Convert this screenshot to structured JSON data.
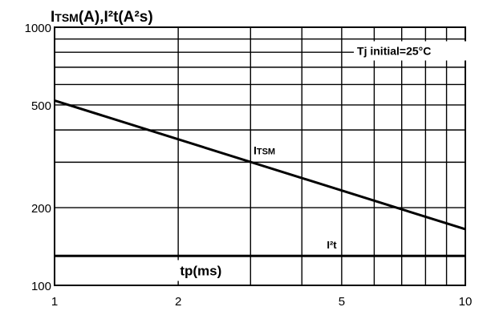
{
  "chart_data": {
    "type": "line",
    "title": "ITSM(A),I²t(A²s)",
    "title_parts": {
      "a": "I",
      "a_small": "TSM",
      "b": "(A),I²t(A²s)"
    },
    "xlabel": "tp(ms)",
    "x_scale": "log",
    "y_scale": "log",
    "xlim": [
      1,
      10
    ],
    "ylim": [
      100,
      1000
    ],
    "x_ticks": [
      1,
      2,
      5,
      10
    ],
    "x_tick_labels": [
      "1",
      "2",
      "5",
      "10"
    ],
    "y_ticks": [
      100,
      200,
      500,
      1000
    ],
    "y_tick_labels": [
      "100",
      "200",
      "500",
      "1000"
    ],
    "x_gridlines": [
      1,
      2,
      3,
      4,
      5,
      6,
      7,
      8,
      9,
      10
    ],
    "y_gridlines": [
      100,
      200,
      300,
      400,
      500,
      600,
      700,
      800,
      900,
      1000
    ],
    "grid": true,
    "annotation": "Tj initial=25°C",
    "series": [
      {
        "name": "ITSM",
        "label_main": "I",
        "label_small": "TSM",
        "x": [
          1,
          10
        ],
        "y": [
          520,
          165
        ],
        "stroke_width": 3
      },
      {
        "name": "I²t",
        "label_main": "I²t",
        "label_small": "",
        "x": [
          1,
          10
        ],
        "y": [
          130,
          130
        ],
        "stroke_width": 3
      }
    ]
  }
}
